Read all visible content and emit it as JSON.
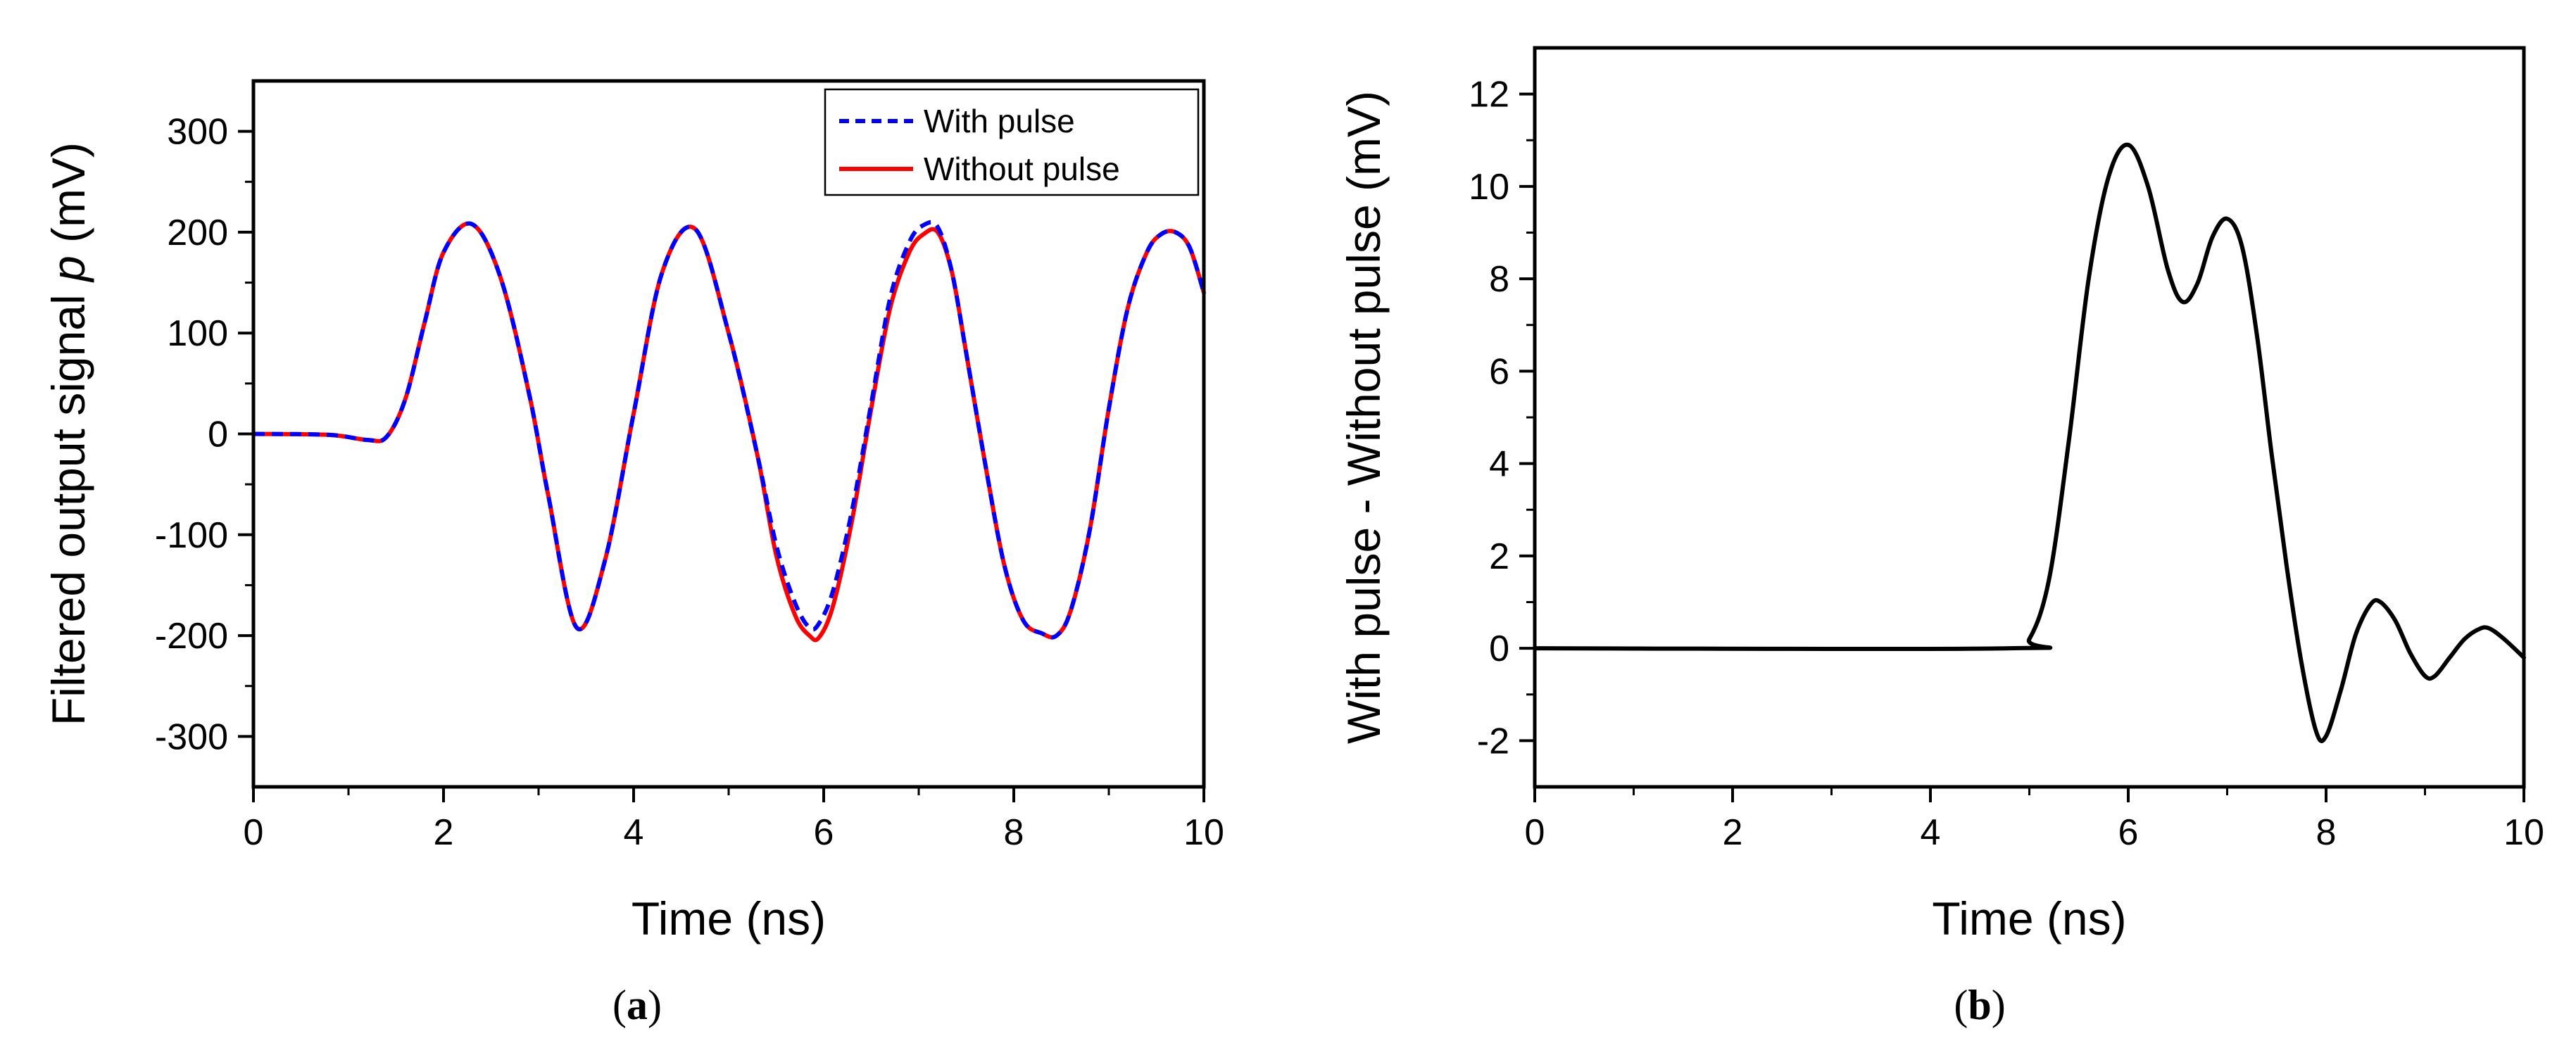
{
  "chart_data": [
    {
      "type": "line",
      "panel_label": "a",
      "xlabel": "Time (ns)",
      "ylabel_prefix": "Filtered output signal ",
      "ylabel_var": "p",
      "ylabel_suffix": " (mV)",
      "xlim": [
        0,
        10
      ],
      "ylim": [
        -350,
        350
      ],
      "xticks": [
        0,
        2,
        4,
        6,
        8,
        10
      ],
      "yticks": [
        -300,
        -200,
        -100,
        0,
        100,
        200,
        300
      ],
      "grid": false,
      "legend_position": "top-right",
      "series": [
        {
          "name": "With pulse",
          "style": "dashed",
          "color": "#0000ff",
          "x": [
            0,
            0.8,
            1.2,
            1.4,
            1.6,
            1.8,
            2.0,
            2.3,
            2.6,
            2.9,
            3.1,
            3.4,
            3.7,
            4.0,
            4.3,
            4.65,
            5.0,
            5.3,
            5.5,
            5.7,
            5.85,
            5.95,
            6.1,
            6.3,
            6.5,
            6.7,
            6.9,
            7.05,
            7.2,
            7.35,
            7.5,
            7.7,
            7.9,
            8.1,
            8.3,
            8.45,
            8.6,
            8.8,
            9.0,
            9.2,
            9.4,
            9.55,
            9.7,
            9.85,
            10.0
          ],
          "y": [
            0,
            -1,
            -6,
            -3,
            35,
            110,
            180,
            208,
            155,
            40,
            -60,
            -192,
            -125,
            20,
            160,
            203,
            100,
            -20,
            -110,
            -168,
            -192,
            -188,
            -155,
            -75,
            30,
            135,
            190,
            207,
            205,
            160,
            80,
            -30,
            -130,
            -185,
            -198,
            -200,
            -175,
            -95,
            25,
            125,
            180,
            198,
            200,
            185,
            140
          ]
        },
        {
          "name": "Without pulse",
          "style": "solid",
          "color": "#ff0000",
          "x": [
            0,
            0.8,
            1.2,
            1.4,
            1.6,
            1.8,
            2.0,
            2.3,
            2.6,
            2.9,
            3.1,
            3.4,
            3.7,
            4.0,
            4.3,
            4.65,
            5.0,
            5.3,
            5.5,
            5.7,
            5.85,
            5.95,
            6.1,
            6.3,
            6.5,
            6.7,
            6.9,
            7.05,
            7.2,
            7.35,
            7.5,
            7.7,
            7.9,
            8.1,
            8.3,
            8.45,
            8.6,
            8.8,
            9.0,
            9.2,
            9.4,
            9.55,
            9.7,
            9.85,
            10.0
          ],
          "y": [
            0,
            -1,
            -6,
            -3,
            35,
            110,
            180,
            208,
            155,
            40,
            -60,
            -192,
            -125,
            20,
            160,
            203,
            100,
            -20,
            -120,
            -180,
            -200,
            -202,
            -170,
            -85,
            25,
            125,
            180,
            198,
            200,
            160,
            80,
            -30,
            -130,
            -185,
            -198,
            -200,
            -175,
            -95,
            25,
            125,
            180,
            198,
            200,
            185,
            140
          ]
        }
      ]
    },
    {
      "type": "line",
      "panel_label": "b",
      "xlabel": "Time (ns)",
      "ylabel": "With pulse - Without pulse (mV)",
      "xlim": [
        0,
        10
      ],
      "ylim": [
        -3,
        13
      ],
      "xticks": [
        0,
        2,
        4,
        6,
        8,
        10
      ],
      "yticks": [
        -2,
        0,
        2,
        4,
        6,
        8,
        10,
        12
      ],
      "grid": false,
      "series": [
        {
          "name": "With pulse - Without pulse",
          "style": "solid",
          "color": "#000000",
          "x": [
            0,
            4.8,
            5.0,
            5.2,
            5.4,
            5.6,
            5.8,
            6.0,
            6.2,
            6.4,
            6.55,
            6.7,
            6.85,
            7.0,
            7.15,
            7.3,
            7.45,
            7.6,
            7.75,
            7.9,
            8.0,
            8.15,
            8.3,
            8.45,
            8.55,
            8.7,
            8.85,
            9.0,
            9.1,
            9.25,
            9.4,
            9.55,
            9.65,
            9.8,
            10.0
          ],
          "y": [
            0,
            0,
            0.2,
            1.5,
            4.5,
            8.0,
            10.2,
            10.9,
            10.0,
            8.2,
            7.5,
            7.9,
            8.9,
            9.3,
            8.7,
            6.8,
            4.2,
            1.8,
            -0.3,
            -1.8,
            -1.9,
            -0.9,
            0.3,
            0.95,
            1.0,
            0.6,
            -0.1,
            -0.6,
            -0.6,
            -0.2,
            0.2,
            0.42,
            0.43,
            0.2,
            -0.2
          ]
        }
      ]
    }
  ]
}
